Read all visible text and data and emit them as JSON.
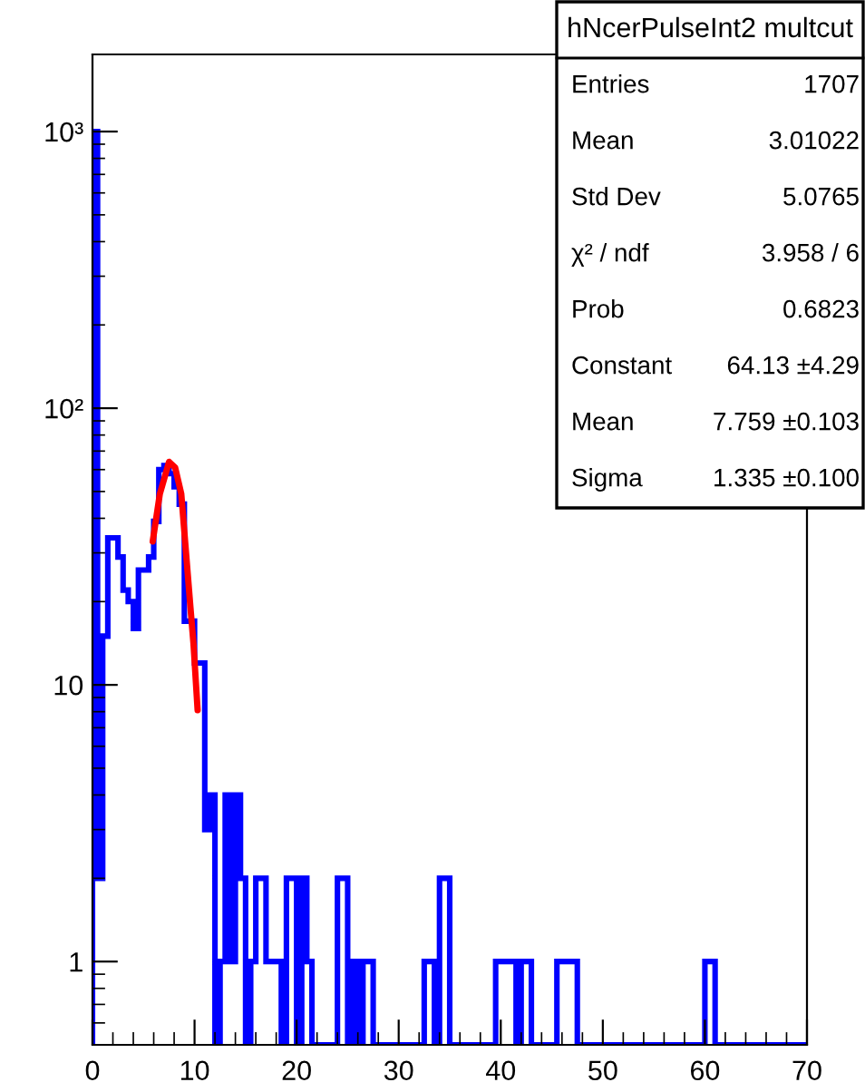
{
  "chart_data": {
    "type": "histogram",
    "title": "hNcerPulseInt2 multcut",
    "series": [
      {
        "color": "#0000ff",
        "bins": [
          0,
          0.5,
          1,
          1.5,
          2,
          2.5,
          3,
          3.5,
          4,
          4.5,
          5,
          5.5,
          6,
          6.5,
          7,
          7.5,
          8,
          8.5,
          9,
          9.5,
          10,
          10.5,
          11,
          11.5,
          12,
          12.5,
          13,
          13.5,
          14,
          14.5,
          15,
          15.5,
          16,
          16.5,
          17,
          17.5,
          18,
          18.5,
          19,
          19.5,
          20,
          20.5,
          21,
          21.5,
          22,
          22.5,
          23,
          23.5,
          24,
          24.5,
          25,
          25.5,
          26,
          26.5,
          27,
          27.5,
          28,
          28.5,
          29,
          29.5,
          30,
          30.5,
          31,
          31.5,
          32,
          32.5,
          33,
          33.5,
          34,
          34.5,
          35,
          35.5,
          36,
          36.5,
          37,
          37.5,
          38,
          38.5,
          39,
          39.5,
          40,
          40.5,
          41,
          41.5,
          42,
          42.5,
          43,
          43.5,
          44,
          44.5,
          45,
          45.5,
          46,
          46.5,
          47,
          47.5,
          48,
          48.5,
          49,
          49.5,
          50,
          50.5,
          51,
          51.5,
          52,
          52.5,
          53,
          53.5,
          54,
          54.5,
          55,
          55.5,
          56,
          56.5,
          57,
          57.5,
          58,
          58.5,
          59,
          59.5,
          60,
          60.5,
          61,
          61.5,
          62,
          62.5,
          63,
          63.5,
          64,
          64.5,
          65,
          65.5,
          66,
          66.5,
          67,
          67.5,
          68,
          68.5,
          69,
          69.5,
          70
        ],
        "values": [
          1000,
          2,
          15,
          34,
          34,
          29,
          22,
          20,
          16,
          26,
          26,
          29,
          39,
          60,
          62,
          58,
          52,
          45,
          17,
          17,
          12,
          12,
          3,
          4,
          null,
          1,
          4,
          1,
          4,
          2,
          null,
          1,
          2,
          2,
          1,
          1,
          1,
          null,
          2,
          2,
          null,
          2,
          1,
          null,
          null,
          null,
          null,
          null,
          2,
          2,
          null,
          1,
          null,
          1,
          1,
          null,
          null,
          null,
          null,
          null,
          null,
          null,
          null,
          null,
          null,
          1,
          1,
          null,
          2,
          2,
          null,
          null,
          null,
          null,
          null,
          null,
          null,
          null,
          null,
          1,
          1,
          1,
          1,
          null,
          1,
          1,
          null,
          null,
          null,
          null,
          null,
          1,
          1,
          1,
          1,
          null,
          null,
          null,
          null,
          null,
          null,
          null,
          null,
          null,
          null,
          null,
          null,
          null,
          null,
          null,
          null,
          null,
          null,
          null,
          null,
          null,
          null,
          null,
          null,
          null,
          1,
          1,
          null,
          null,
          null,
          null,
          null,
          null,
          null,
          null,
          null,
          null,
          null,
          null,
          null,
          null,
          null,
          null,
          null,
          null
        ]
      },
      {
        "type": "line",
        "color": "#ff0000",
        "x": [
          5.9,
          6.6,
          7.5,
          8.1,
          8.7,
          9.6,
          9.9,
          10.3
        ],
        "values": [
          33,
          49,
          64,
          61,
          49,
          19,
          14,
          8.1
        ]
      }
    ],
    "xlim": [
      0,
      70
    ],
    "xticks": [
      0,
      10,
      20,
      30,
      40,
      50,
      60,
      70
    ],
    "log": "y",
    "ylim": [
      0.5,
      1900
    ],
    "yticks": [
      {
        "value": 1,
        "label": "1"
      },
      {
        "value": 10,
        "label": "10"
      },
      {
        "value": 100,
        "label": "10²"
      },
      {
        "value": 1000,
        "label": "10³"
      }
    ],
    "grid": false,
    "legend": false,
    "annotations": [
      "Entries",
      "1707",
      "Mean",
      "3.01022",
      "Std Dev",
      "5.0765",
      "χ² / ndf",
      "3.958 / 6",
      "Prob",
      "0.6823",
      "Constant",
      "64.13 ±4.29",
      "Mean",
      "7.759 ±0.103",
      "Sigma",
      "1.335 ±0.100"
    ]
  }
}
